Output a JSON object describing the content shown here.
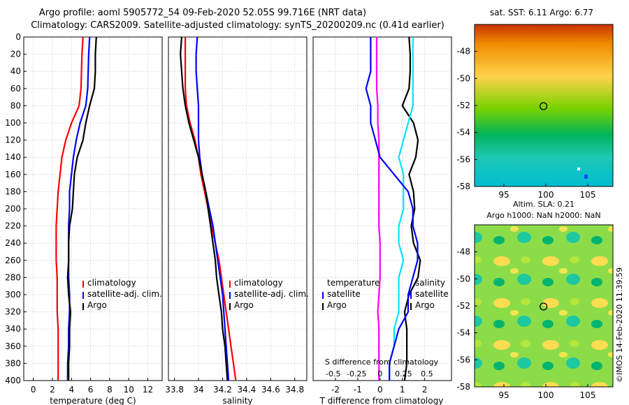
{
  "title": {
    "line1": "Argo profile: aoml 5905772_54 09-Feb-2020 52.05S 99.716E (NRT data)",
    "line2": "Climatology: CARS2009. Satellite-adjusted climatology: synTS_20200209.nc (0.41d earlier)"
  },
  "watermark": "©IMOS 14-Feb-2020 11:39:59",
  "colors": {
    "climatology": "#ff0000",
    "satellite": "#0000ff",
    "argo": "#000000",
    "t_diff": "#ff00ff",
    "s_diff": "#00e5ff"
  },
  "chart_data": [
    {
      "type": "line",
      "id": "temperature",
      "xlabel": "temperature (deg C)",
      "ylabel": "",
      "xlim": [
        -1,
        13.5
      ],
      "ylim": [
        400,
        0
      ],
      "xticks": [
        "0",
        "2",
        "4",
        "6",
        "8",
        "10",
        "12"
      ],
      "yticks": [
        "0",
        "20",
        "40",
        "60",
        "80",
        "100",
        "120",
        "140",
        "160",
        "180",
        "200",
        "220",
        "240",
        "260",
        "280",
        "300",
        "320",
        "340",
        "360",
        "380",
        "400"
      ],
      "legend": [
        "climatology",
        "satellite-adj. clim.",
        "Argo"
      ],
      "series": [
        {
          "name": "climatology",
          "x": [
            5.2,
            5.1,
            5.05,
            5.0,
            4.8,
            4.0,
            3.4,
            3.0,
            2.8,
            2.6,
            2.5,
            2.4,
            2.4,
            2.4,
            2.5,
            2.5,
            2.5,
            2.6,
            2.6,
            2.6,
            2.6
          ],
          "depth": [
            0,
            20,
            40,
            60,
            80,
            100,
            120,
            140,
            160,
            180,
            200,
            220,
            240,
            260,
            280,
            300,
            320,
            340,
            360,
            380,
            400
          ]
        },
        {
          "name": "satellite-adj. clim.",
          "x": [
            5.9,
            5.8,
            5.75,
            5.7,
            5.5,
            4.9,
            4.5,
            4.2,
            4.0,
            3.8,
            3.8,
            3.7,
            3.7,
            3.7,
            3.7,
            3.8,
            3.8,
            3.7,
            3.7,
            3.6,
            3.6
          ],
          "depth": [
            0,
            20,
            40,
            60,
            80,
            100,
            120,
            140,
            160,
            180,
            200,
            220,
            240,
            260,
            280,
            300,
            320,
            340,
            360,
            380,
            400
          ]
        },
        {
          "name": "Argo",
          "x": [
            6.6,
            6.5,
            6.5,
            6.4,
            5.9,
            5.5,
            5.2,
            4.6,
            4.3,
            4.2,
            4.1,
            3.8,
            3.7,
            3.7,
            3.6,
            3.7,
            3.9,
            3.8,
            3.8,
            3.7,
            3.7
          ],
          "depth": [
            0,
            20,
            40,
            60,
            80,
            100,
            120,
            140,
            160,
            180,
            200,
            220,
            240,
            260,
            280,
            300,
            320,
            340,
            360,
            380,
            400
          ]
        }
      ]
    },
    {
      "type": "line",
      "id": "salinity",
      "xlabel": "salinity",
      "xlim": [
        33.75,
        34.9
      ],
      "ylim": [
        400,
        0
      ],
      "xticks": [
        "33.8",
        "34",
        "34.2",
        "34.4",
        "34.6",
        "34.8"
      ],
      "legend": [
        "climatology",
        "satellite-adj. clim.",
        "Argo"
      ],
      "series": [
        {
          "name": "climatology",
          "x": [
            33.89,
            33.89,
            33.89,
            33.89,
            33.9,
            33.93,
            33.97,
            34.0,
            34.02,
            34.05,
            34.08,
            34.11,
            34.14,
            34.17,
            34.19,
            34.21,
            34.23,
            34.25,
            34.27,
            34.29,
            34.31
          ],
          "depth": [
            0,
            20,
            40,
            60,
            80,
            100,
            120,
            140,
            160,
            180,
            200,
            220,
            240,
            260,
            280,
            300,
            320,
            340,
            360,
            380,
            400
          ]
        },
        {
          "name": "satellite-adj. clim.",
          "x": [
            33.99,
            33.98,
            33.98,
            33.99,
            34.0,
            34.0,
            34.0,
            34.01,
            34.03,
            34.06,
            34.09,
            34.12,
            34.14,
            34.16,
            34.18,
            34.2,
            34.21,
            34.22,
            34.23,
            34.24,
            34.25
          ],
          "depth": [
            0,
            20,
            40,
            60,
            80,
            100,
            120,
            140,
            160,
            180,
            200,
            220,
            240,
            260,
            280,
            300,
            320,
            340,
            360,
            380,
            400
          ]
        },
        {
          "name": "Argo",
          "x": [
            33.86,
            33.85,
            33.86,
            33.87,
            33.89,
            33.92,
            33.96,
            34.0,
            34.03,
            34.06,
            34.08,
            34.1,
            34.12,
            34.14,
            34.15,
            34.17,
            34.19,
            34.2,
            34.22,
            34.23,
            34.24
          ],
          "depth": [
            0,
            20,
            40,
            60,
            80,
            100,
            120,
            140,
            160,
            180,
            200,
            220,
            240,
            260,
            280,
            300,
            320,
            340,
            360,
            380,
            400
          ]
        }
      ]
    },
    {
      "type": "line",
      "id": "difference",
      "xlabel": "T difference from climatology",
      "xlabel_top": "S difference from climatology",
      "xlim": [
        -3,
        3.2
      ],
      "ylim": [
        400,
        0
      ],
      "xticks": [
        "-2",
        "-1",
        "0",
        "1",
        "2"
      ],
      "s_xticks": [
        "-0.5",
        "-0.25",
        "0",
        "0.25",
        "0.5"
      ],
      "legend_headers": [
        "temperature",
        "salinity"
      ],
      "legend": [
        "satellite",
        "Argo"
      ],
      "series": [
        {
          "name": "T satellite",
          "x": [
            -0.15,
            -0.15,
            -0.15,
            -0.15,
            -0.1,
            -0.1,
            -0.05,
            -0.05,
            -0.05,
            -0.05,
            -0.05,
            -0.05,
            0.0,
            0.0,
            0.0,
            -0.05,
            -0.1,
            -0.05,
            -0.05,
            -0.05,
            -0.05
          ],
          "depth": [
            0,
            20,
            40,
            60,
            80,
            100,
            120,
            140,
            160,
            180,
            200,
            220,
            240,
            260,
            280,
            300,
            320,
            340,
            360,
            380,
            400
          ]
        },
        {
          "name": "T Argo",
          "x": [
            1.3,
            1.35,
            1.35,
            1.3,
            1.0,
            1.5,
            1.7,
            1.6,
            1.3,
            1.5,
            1.55,
            1.4,
            1.5,
            1.8,
            1.7,
            1.3,
            1.1,
            1.2,
            1.2,
            1.2,
            1.1
          ],
          "depth": [
            0,
            20,
            40,
            60,
            80,
            100,
            120,
            140,
            160,
            180,
            200,
            220,
            240,
            260,
            280,
            300,
            320,
            340,
            360,
            380,
            400
          ]
        },
        {
          "name": "S satellite",
          "x": [
            0.35,
            0.35,
            0.35,
            0.35,
            0.35,
            0.3,
            0.25,
            0.2,
            0.25,
            0.25,
            0.25,
            0.2,
            0.2,
            0.25,
            0.2,
            0.2,
            0.2,
            0.15,
            0.15,
            0.1,
            0.1
          ],
          "depth": [
            0,
            20,
            40,
            60,
            80,
            100,
            120,
            140,
            160,
            180,
            200,
            220,
            240,
            260,
            280,
            300,
            320,
            340,
            360,
            380,
            400
          ]
        },
        {
          "name": "S Argo",
          "x": [
            -0.1,
            -0.1,
            -0.1,
            -0.15,
            -0.1,
            -0.1,
            -0.05,
            0.0,
            0.15,
            0.3,
            0.35,
            0.35,
            0.4,
            0.4,
            0.35,
            0.3,
            0.3,
            0.2,
            0.15,
            0.1,
            0.1
          ],
          "depth": [
            0,
            20,
            40,
            60,
            80,
            100,
            120,
            140,
            160,
            180,
            200,
            220,
            240,
            260,
            280,
            300,
            320,
            340,
            360,
            380,
            400
          ]
        }
      ]
    },
    {
      "type": "heatmap",
      "id": "sst_map",
      "title": "sat. SST: 6.11 Argo: 6.77",
      "xlim": [
        91.5,
        108
      ],
      "ylim": [
        -58,
        -46
      ],
      "xticks": [
        "95",
        "100",
        "105"
      ],
      "yticks": [
        "-48",
        "-50",
        "-52",
        "-54",
        "-56",
        "-58"
      ],
      "marker": {
        "lon": 99.716,
        "lat": -52.05
      }
    },
    {
      "type": "heatmap",
      "id": "sla_map",
      "title": "Altim. SLA: 0.21",
      "subtitle": "Argo h1000: NaN h2000: NaN",
      "xlim": [
        91.5,
        108
      ],
      "ylim": [
        -58,
        -46
      ],
      "xticks": [
        "95",
        "100",
        "105"
      ],
      "yticks": [
        "-48",
        "-50",
        "-52",
        "-54",
        "-56",
        "-58"
      ],
      "marker": {
        "lon": 99.716,
        "lat": -52.05
      }
    }
  ]
}
